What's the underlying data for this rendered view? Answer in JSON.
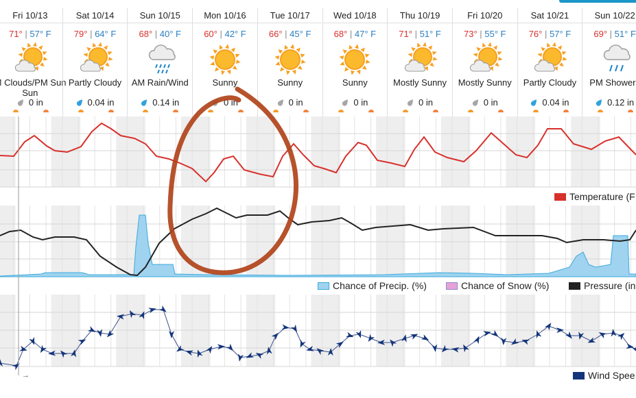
{
  "forecast": {
    "days": [
      {
        "name": "Fri 10/13",
        "hi": "71°",
        "lo": "57° F",
        "icon": "partly-cloudy-icon",
        "cond": "AM Clouds/PM Sun",
        "cond2": "Sun",
        "precip": "0 in",
        "drop": "gray"
      },
      {
        "name": "Sat 10/14",
        "hi": "79°",
        "lo": "64° F",
        "icon": "partly-cloudy-icon",
        "cond": "Partly Cloudy",
        "cond2": "",
        "precip": "0.04 in",
        "drop": "blue"
      },
      {
        "name": "Sun 10/15",
        "hi": "68°",
        "lo": "40° F",
        "icon": "rain-cloud-icon",
        "cond": "AM Rain/Wind",
        "cond2": "",
        "precip": "0.14 in",
        "drop": "blue"
      },
      {
        "name": "Mon 10/16",
        "hi": "60°",
        "lo": "42° F",
        "icon": "sun-icon",
        "cond": "Sunny",
        "cond2": "",
        "precip": "0 in",
        "drop": "gray"
      },
      {
        "name": "Tue 10/17",
        "hi": "66°",
        "lo": "45° F",
        "icon": "sun-icon",
        "cond": "Sunny",
        "cond2": "",
        "precip": "0 in",
        "drop": "gray"
      },
      {
        "name": "Wed 10/18",
        "hi": "68°",
        "lo": "47° F",
        "icon": "sun-icon",
        "cond": "Sunny",
        "cond2": "",
        "precip": "0 in",
        "drop": "gray"
      },
      {
        "name": "Thu 10/19",
        "hi": "71°",
        "lo": "51° F",
        "icon": "partly-cloudy-icon",
        "cond": "Mostly Sunny",
        "cond2": "",
        "precip": "0 in",
        "drop": "gray"
      },
      {
        "name": "Fri 10/20",
        "hi": "73°",
        "lo": "55° F",
        "icon": "partly-cloudy-icon",
        "cond": "Mostly Sunny",
        "cond2": "",
        "precip": "0 in",
        "drop": "gray"
      },
      {
        "name": "Sat 10/21",
        "hi": "76°",
        "lo": "57° F",
        "icon": "partly-cloudy-icon",
        "cond": "Partly Cloudy",
        "cond2": "",
        "precip": "0.04 in",
        "drop": "blue"
      },
      {
        "name": "Sun 10/22",
        "hi": "69°",
        "lo": "51° F",
        "icon": "showers-cloud-icon",
        "cond": "PM Showers",
        "cond2": "",
        "precip": "0.12 in",
        "drop": "blue"
      }
    ],
    "separator": " | "
  },
  "legends": {
    "temperature": "Temperature (F",
    "precip": "Chance of Precip. (%)",
    "snow": "Chance of Snow (%)",
    "pressure": "Pressure (in",
    "wind": "Wind Spee"
  },
  "wind_axis_arrow": "→",
  "colors": {
    "temperature": "#d8302b",
    "pressure": "#222222",
    "precip_fill": "#9fd3ef",
    "precip_stroke": "#3ba9dd",
    "snow_fill": "#e6a1d8",
    "snow_stroke": "#8b8bd0",
    "wind": "#13357a",
    "annotation": "#b0431a",
    "sun": "#f7a021",
    "cloud": "#b8b8b8"
  }
}
